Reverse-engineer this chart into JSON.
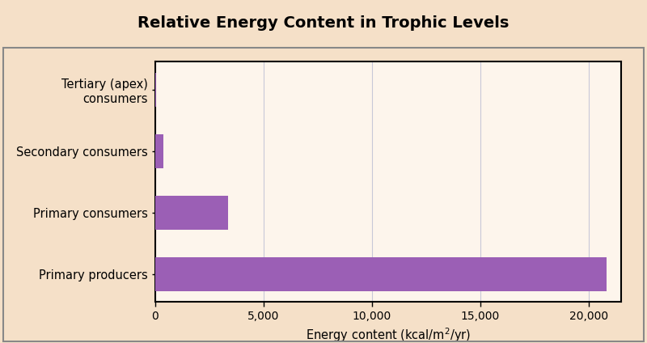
{
  "title": "Relative Energy Content in Trophic Levels",
  "categories": [
    "Primary producers",
    "Primary consumers",
    "Secondary consumers",
    "Tertiary (apex)\nconsumers"
  ],
  "values": [
    20810,
    3368,
    383,
    21
  ],
  "bar_color": "#9b5fb5",
  "xlabel": "Energy content (kcal/m$^2$/yr)",
  "xlim": [
    0,
    21500
  ],
  "xticks": [
    0,
    5000,
    10000,
    15000,
    20000
  ],
  "xticklabels": [
    "0",
    "5,000",
    "10,000",
    "15,000",
    "20,000"
  ],
  "plot_bg_color": "#fdf5ec",
  "outer_bg_color": "#f5e0c8",
  "title_bg_color": "#f0a050",
  "grid_color": "#c8c8d8",
  "title_fontsize": 14,
  "label_fontsize": 10.5,
  "tick_fontsize": 10,
  "bar_height": 0.55
}
